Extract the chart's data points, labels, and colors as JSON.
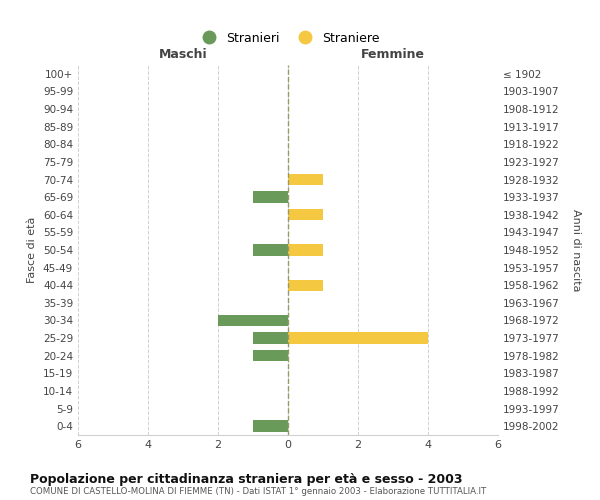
{
  "age_groups": [
    "100+",
    "95-99",
    "90-94",
    "85-89",
    "80-84",
    "75-79",
    "70-74",
    "65-69",
    "60-64",
    "55-59",
    "50-54",
    "45-49",
    "40-44",
    "35-39",
    "30-34",
    "25-29",
    "20-24",
    "15-19",
    "10-14",
    "5-9",
    "0-4"
  ],
  "birth_years": [
    "≤ 1902",
    "1903-1907",
    "1908-1912",
    "1913-1917",
    "1918-1922",
    "1923-1927",
    "1928-1932",
    "1933-1937",
    "1938-1942",
    "1943-1947",
    "1948-1952",
    "1953-1957",
    "1958-1962",
    "1963-1967",
    "1968-1972",
    "1973-1977",
    "1978-1982",
    "1983-1987",
    "1988-1992",
    "1993-1997",
    "1998-2002"
  ],
  "males": [
    0,
    0,
    0,
    0,
    0,
    0,
    0,
    1,
    0,
    0,
    1,
    0,
    0,
    0,
    2,
    1,
    1,
    0,
    0,
    0,
    1
  ],
  "females": [
    0,
    0,
    0,
    0,
    0,
    0,
    1,
    0,
    1,
    0,
    1,
    0,
    1,
    0,
    0,
    4,
    0,
    0,
    0,
    0,
    0
  ],
  "male_color": "#6a9a5a",
  "female_color": "#f5c842",
  "title": "Popolazione per cittadinanza straniera per età e sesso - 2003",
  "subtitle": "COMUNE DI CASTELLO-MOLINA DI FIEMME (TN) - Dati ISTAT 1° gennaio 2003 - Elaborazione TUTTITALIA.IT",
  "xlabel_left": "Maschi",
  "xlabel_right": "Femmine",
  "ylabel_left": "Fasce di età",
  "ylabel_right": "Anni di nascita",
  "legend_male": "Stranieri",
  "legend_female": "Straniere",
  "xlim": 6,
  "bg_color": "#ffffff",
  "grid_color": "#d0d0d0"
}
